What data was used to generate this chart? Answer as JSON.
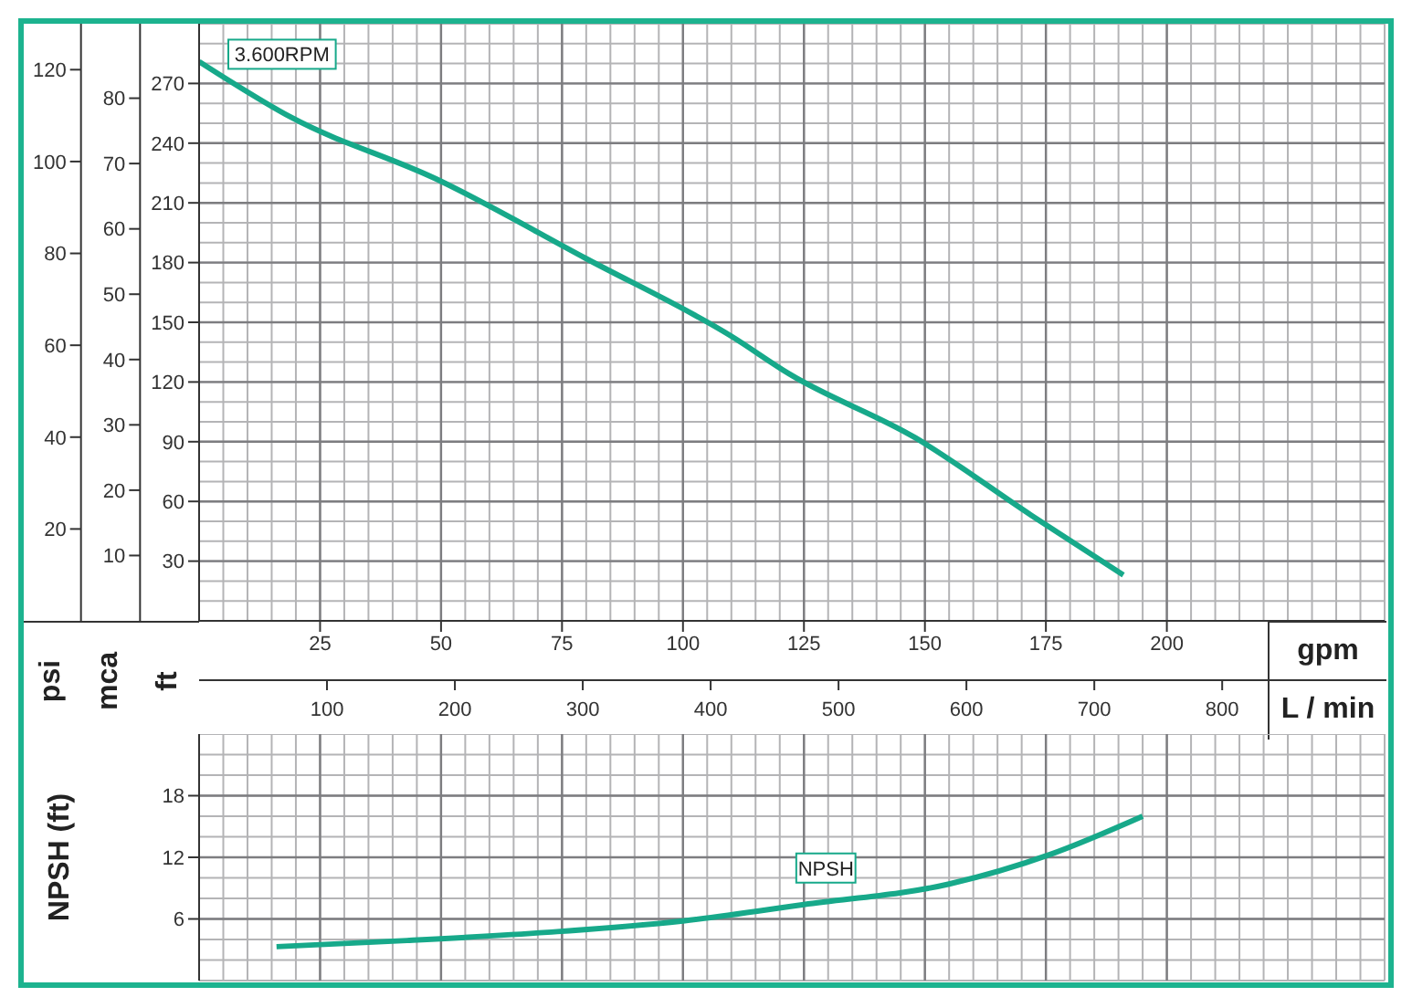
{
  "chart_data": [
    {
      "type": "line",
      "xlabel": "gpm",
      "x2label": "L / min",
      "ylabel": "ft",
      "y2label": "mca",
      "y3label": "psi",
      "xlim": [
        0,
        245
      ],
      "xticks": [
        25,
        50,
        75,
        100,
        125,
        150,
        175,
        200
      ],
      "x2lim": [
        0,
        927
      ],
      "x2ticks": [
        100,
        200,
        300,
        400,
        500,
        600,
        700,
        800
      ],
      "ylim": [
        0,
        300
      ],
      "yticks": [
        30,
        60,
        90,
        120,
        150,
        180,
        210,
        240,
        270
      ],
      "y2lim": [
        0,
        91.4
      ],
      "y2ticks": [
        10,
        20,
        30,
        40,
        50,
        60,
        70,
        80
      ],
      "y3lim": [
        0,
        130
      ],
      "y3ticks": [
        20,
        40,
        60,
        80,
        100,
        120
      ],
      "grid": true,
      "legend": false,
      "series": [
        {
          "name": "3.600RPM",
          "color": "#17a98a",
          "x": [
            0,
            19,
            49,
            80,
            110,
            122,
            148,
            172,
            191
          ],
          "values": [
            281,
            253,
            222,
            182,
            143,
            124,
            92,
            53,
            23
          ]
        }
      ]
    },
    {
      "type": "line",
      "ylabel": "NPSH (ft)",
      "xlim": [
        0,
        245
      ],
      "xticks": [
        25,
        50,
        75,
        100,
        125,
        150,
        175,
        200
      ],
      "ylim": [
        0,
        24
      ],
      "yticks": [
        6,
        12,
        18
      ],
      "tick_labels": "y",
      "grid": true,
      "legend": false,
      "series": [
        {
          "name": "NPSH",
          "color": "#17a98a",
          "x": [
            16,
            43,
            72,
            100,
            125,
            155,
            176,
            195
          ],
          "values": [
            3.3,
            3.9,
            4.7,
            5.8,
            7.4,
            9.4,
            12.3,
            16
          ]
        }
      ]
    }
  ]
}
